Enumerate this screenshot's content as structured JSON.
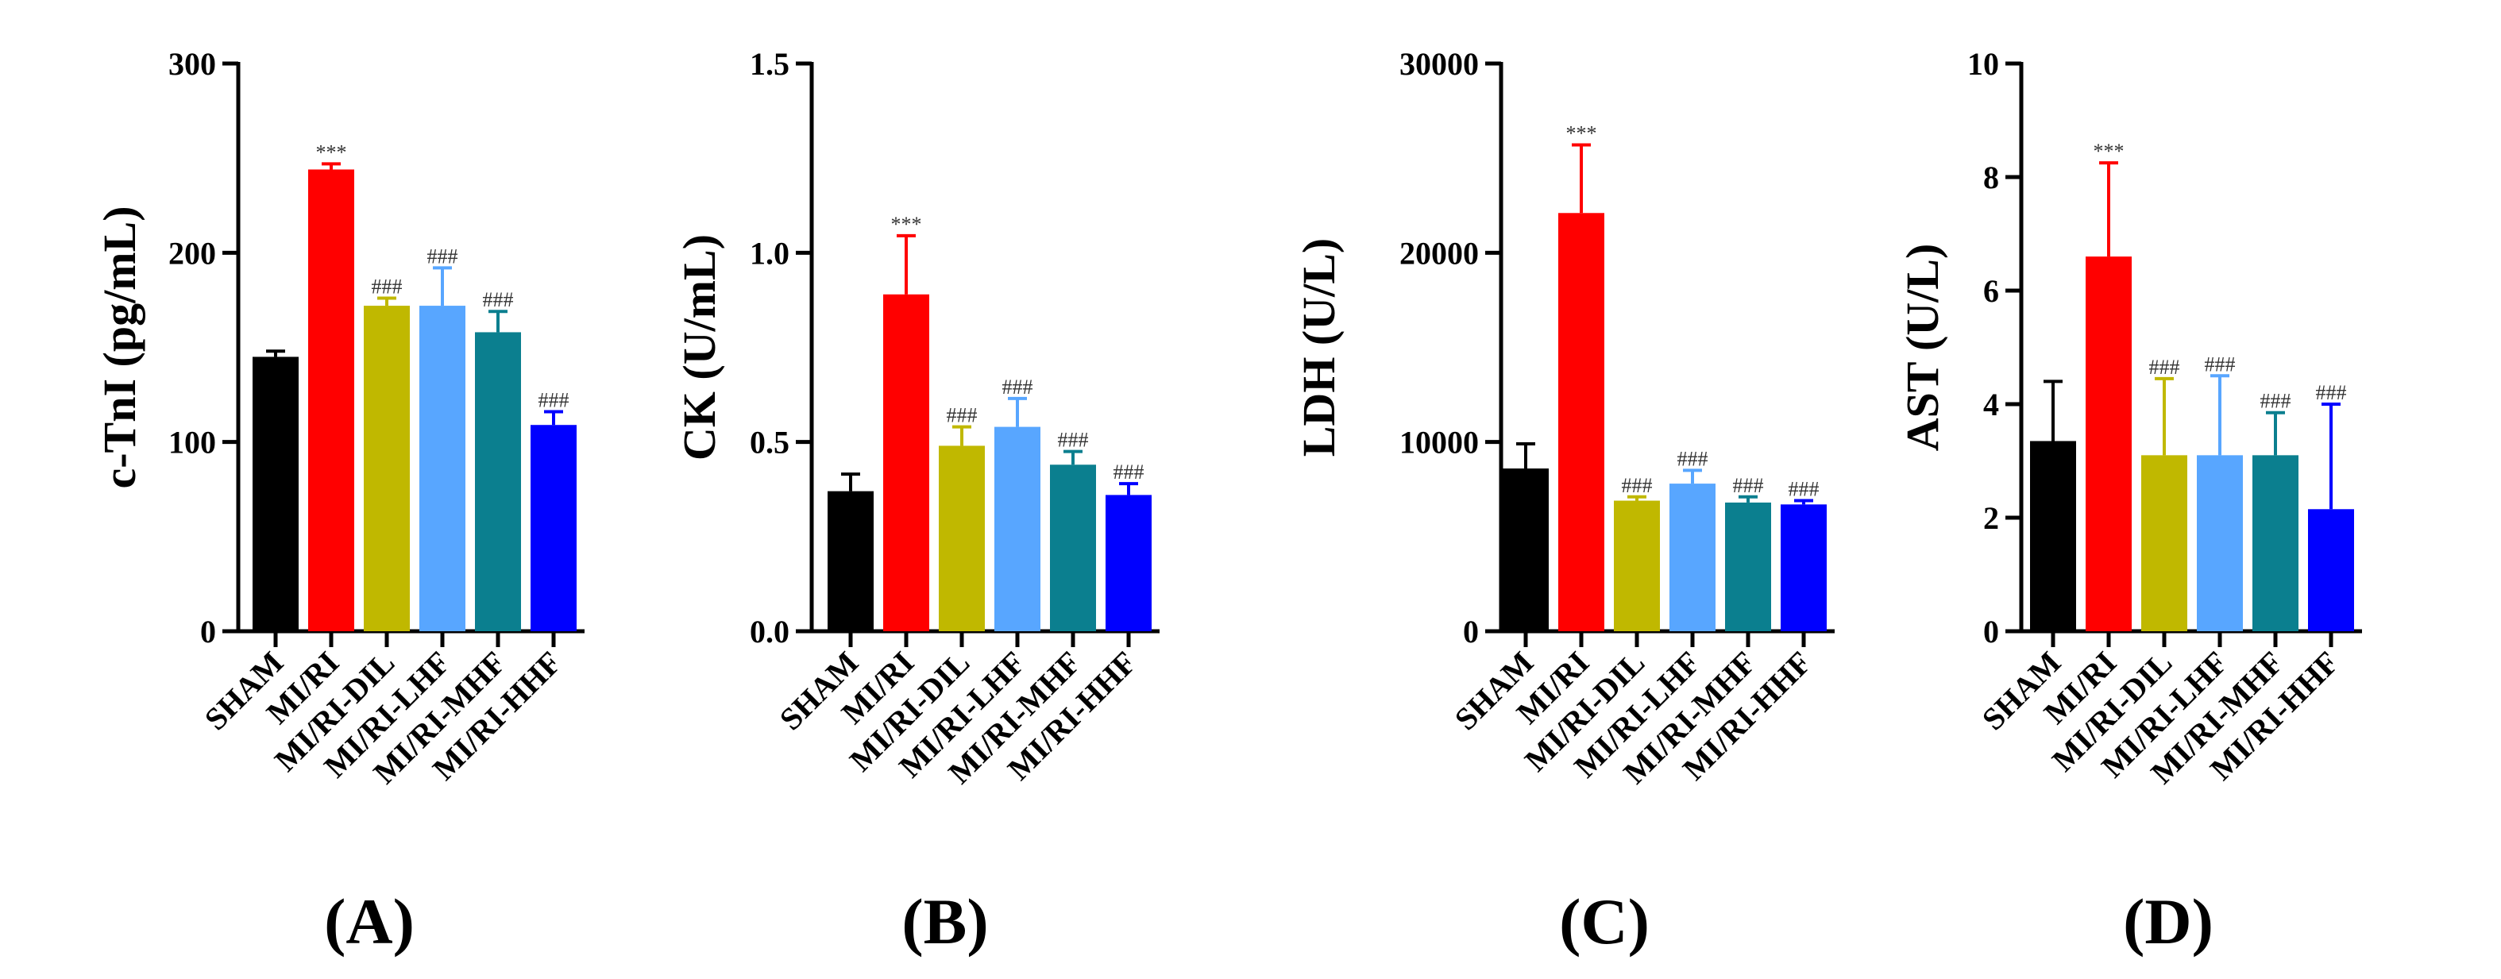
{
  "colors": {
    "SHAM": "#000000",
    "MI/RI": "#ff0000",
    "MI/RI-DIL": "#c0b800",
    "MI/RI-LHF": "#58a6ff",
    "MI/RI-MHF": "#0b7f8f",
    "MI/RI-HHF": "#0000ff"
  },
  "chart_data": [
    {
      "type": "bar",
      "panel_label": "(A)",
      "ylabel": "c-TnI (pg/mL)",
      "ylim": [
        0,
        300
      ],
      "yticks": [
        0,
        100,
        200,
        300
      ],
      "ytick_labels": [
        "0",
        "100",
        "200",
        "300"
      ],
      "categories": [
        "SHAM",
        "MI/RI",
        "MI/RI-DIL",
        "MI/RI-LHF",
        "MI/RI-MHF",
        "MI/RI-HHF"
      ],
      "values": [
        145,
        244,
        172,
        172,
        158,
        109
      ],
      "errors": [
        3,
        3,
        4,
        20,
        11,
        7
      ],
      "annotations": [
        "",
        "***",
        "###",
        "###",
        "###",
        "###"
      ]
    },
    {
      "type": "bar",
      "panel_label": "(B)",
      "ylabel": "CK (U/mL)",
      "ylim": [
        0,
        1.5
      ],
      "yticks": [
        0,
        0.5,
        1.0,
        1.5
      ],
      "ytick_labels": [
        "0.0",
        "0.5",
        "1.0",
        "1.5"
      ],
      "categories": [
        "SHAM",
        "MI/RI",
        "MI/RI-DIL",
        "MI/RI-LHF",
        "MI/RI-MHF",
        "MI/RI-HHF"
      ],
      "values": [
        0.37,
        0.89,
        0.49,
        0.54,
        0.44,
        0.36
      ],
      "errors": [
        0.045,
        0.155,
        0.05,
        0.075,
        0.035,
        0.03
      ],
      "annotations": [
        "",
        "***",
        "###",
        "###",
        "###",
        "###"
      ]
    },
    {
      "type": "bar",
      "panel_label": "(C)",
      "ylabel": "LDH (U/L)",
      "ylim": [
        0,
        30000
      ],
      "yticks": [
        0,
        10000,
        20000,
        30000
      ],
      "ytick_labels": [
        "0",
        "10000",
        "20000",
        "30000"
      ],
      "categories": [
        "SHAM",
        "MI/RI",
        "MI/RI-DIL",
        "MI/RI-LHF",
        "MI/RI-MHF",
        "MI/RI-HHF"
      ],
      "values": [
        8600,
        22100,
        6900,
        7800,
        6800,
        6700
      ],
      "errors": [
        1300,
        3600,
        200,
        700,
        300,
        200
      ],
      "annotations": [
        "",
        "***",
        "###",
        "###",
        "###",
        "###"
      ]
    },
    {
      "type": "bar",
      "panel_label": "(D)",
      "ylabel": "AST (U/L)",
      "ylim": [
        0,
        10
      ],
      "yticks": [
        0,
        2,
        4,
        6,
        8,
        10
      ],
      "ytick_labels": [
        "0",
        "2",
        "4",
        "6",
        "8",
        "10"
      ],
      "categories": [
        "SHAM",
        "MI/RI",
        "MI/RI-DIL",
        "MI/RI-LHF",
        "MI/RI-MHF",
        "MI/RI-HHF"
      ],
      "values": [
        3.35,
        6.6,
        3.1,
        3.1,
        3.1,
        2.15
      ],
      "errors": [
        1.05,
        1.65,
        1.35,
        1.4,
        0.75,
        1.85
      ],
      "annotations": [
        "",
        "***",
        "###",
        "###",
        "###",
        "###"
      ]
    }
  ]
}
